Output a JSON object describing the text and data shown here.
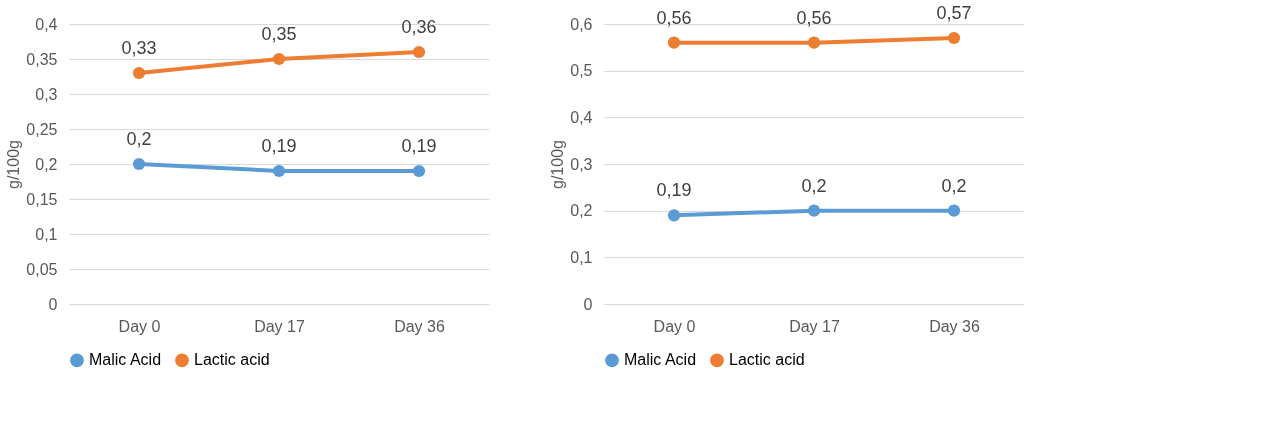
{
  "chart_data": [
    {
      "type": "line",
      "ylabel": "g/100g",
      "categories": [
        "Day 0",
        "Day 17",
        "Day 36"
      ],
      "ylim": [
        0,
        0.4
      ],
      "yticks": [
        {
          "value": 0,
          "label": "0"
        },
        {
          "value": 0.05,
          "label": "0,05"
        },
        {
          "value": 0.1,
          "label": "0,1"
        },
        {
          "value": 0.15,
          "label": "0,15"
        },
        {
          "value": 0.2,
          "label": "0,2"
        },
        {
          "value": 0.25,
          "label": "0,25"
        },
        {
          "value": 0.3,
          "label": "0,3"
        },
        {
          "value": 0.35,
          "label": "0,35"
        },
        {
          "value": 0.4,
          "label": "0,4"
        }
      ],
      "grid": "y",
      "legend": "bottom",
      "marker": "circle",
      "line_style": "solid",
      "series": [
        {
          "name": "Malic Acid",
          "color": "#5b9bd5",
          "values": [
            0.2,
            0.19,
            0.19
          ],
          "value_labels": [
            "0,2",
            "0,19",
            "0,19"
          ]
        },
        {
          "name": "Lactic acid",
          "color": "#ed7d31",
          "values": [
            0.33,
            0.35,
            0.36
          ],
          "value_labels": [
            "0,33",
            "0,35",
            "0,36"
          ]
        }
      ]
    },
    {
      "type": "line",
      "ylabel": "g/100g",
      "categories": [
        "Day 0",
        "Day 17",
        "Day 36"
      ],
      "ylim": [
        0,
        0.6
      ],
      "yticks": [
        {
          "value": 0,
          "label": "0"
        },
        {
          "value": 0.1,
          "label": "0,1"
        },
        {
          "value": 0.2,
          "label": "0,2"
        },
        {
          "value": 0.3,
          "label": "0,3"
        },
        {
          "value": 0.4,
          "label": "0,4"
        },
        {
          "value": 0.5,
          "label": "0,5"
        },
        {
          "value": 0.6,
          "label": "0,6"
        }
      ],
      "grid": "y",
      "legend": "bottom",
      "marker": "circle",
      "line_style": "solid",
      "series": [
        {
          "name": "Malic Acid",
          "color": "#5b9bd5",
          "values": [
            0.19,
            0.2,
            0.2
          ],
          "value_labels": [
            "0,19",
            "0,2",
            "0,2"
          ]
        },
        {
          "name": "Lactic acid",
          "color": "#ed7d31",
          "values": [
            0.56,
            0.56,
            0.57
          ],
          "value_labels": [
            "0,56",
            "0,56",
            "0,57"
          ]
        }
      ]
    }
  ]
}
